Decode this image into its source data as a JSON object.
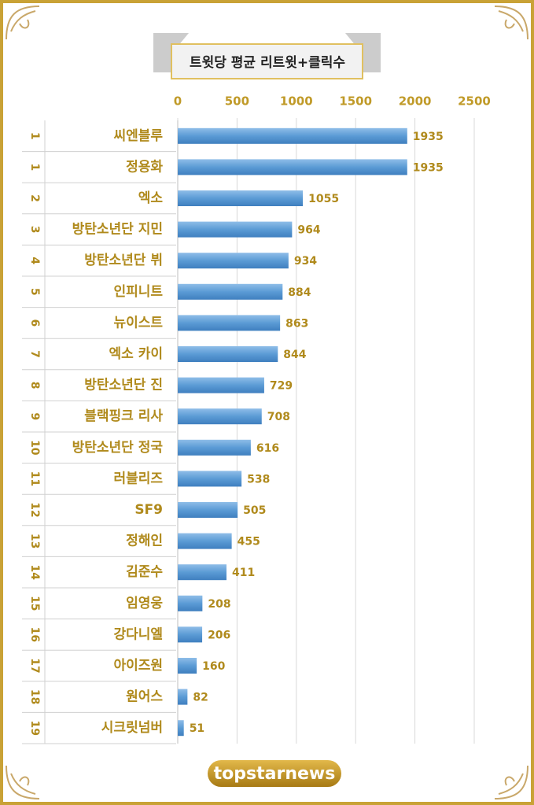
{
  "chart_data": {
    "type": "bar",
    "orientation": "horizontal",
    "title": "트윗당 평균 리트윗+클릭수",
    "ranks": [
      1,
      1,
      2,
      3,
      4,
      5,
      6,
      7,
      8,
      9,
      10,
      11,
      12,
      13,
      14,
      15,
      16,
      17,
      18,
      19
    ],
    "categories": [
      "씨엔블루",
      "정용화",
      "엑소",
      "방탄소년단 지민",
      "방탄소년단 뷔",
      "인피니트",
      "뉴이스트",
      "엑소 카이",
      "방탄소년단 진",
      "블랙핑크 리사",
      "방탄소년단 정국",
      "러블리즈",
      "SF9",
      "정해인",
      "김준수",
      "임영웅",
      "강다니엘",
      "아이즈원",
      "원어스",
      "시크릿넘버"
    ],
    "values": [
      1935,
      1935,
      1055,
      964,
      934,
      884,
      863,
      844,
      729,
      708,
      616,
      538,
      505,
      455,
      411,
      208,
      206,
      160,
      82,
      51
    ],
    "color": "#5b9bd5",
    "xlim": [
      0,
      2500
    ],
    "xticks": [
      0,
      500,
      1000,
      1500,
      2000,
      2500
    ],
    "grid": true
  },
  "footer": "topstarnews"
}
